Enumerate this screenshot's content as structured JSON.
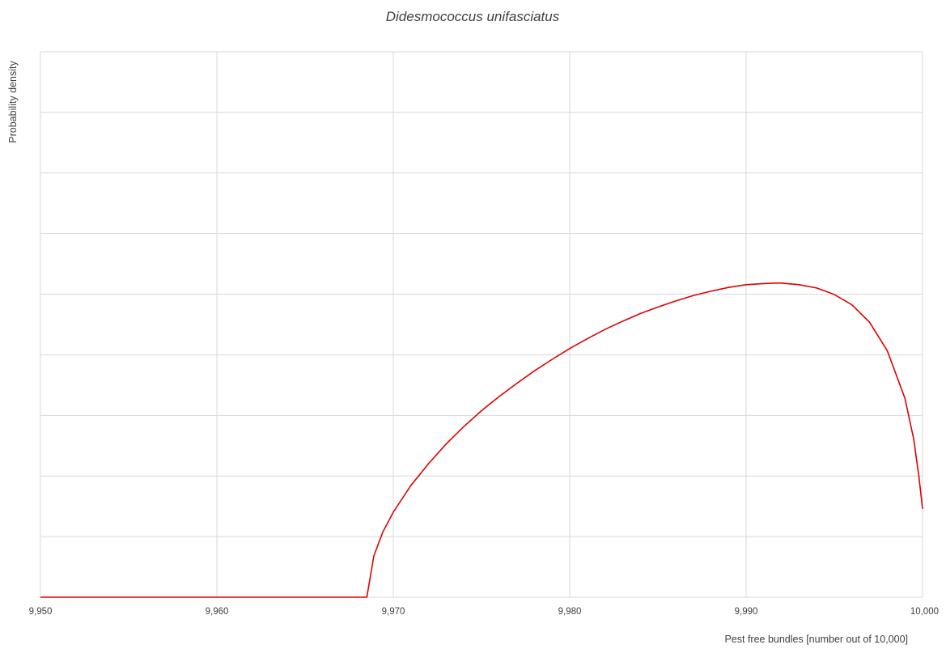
{
  "chart_data": {
    "type": "line",
    "title": "Didesmococcus unifasciatus",
    "xlabel": "Pest free bundles [number out of 10,000]",
    "ylabel": "Probability density",
    "xlim": [
      9950,
      10000
    ],
    "ylim": [
      0,
      1
    ],
    "x_ticks": [
      9950,
      9960,
      9970,
      9980,
      9990,
      10000
    ],
    "x_tick_labels": [
      "9,950",
      "9,960",
      "9,970",
      "9,980",
      "9,990",
      "10,000"
    ],
    "y_gridlines": 8,
    "grid": true,
    "legend": "none",
    "series": [
      {
        "color": "#e00000",
        "points": [
          [
            9950,
            0
          ],
          [
            9968.5,
            0
          ],
          [
            9968.9,
            0.076
          ],
          [
            9969.4,
            0.119
          ],
          [
            9970,
            0.156
          ],
          [
            9971,
            0.205
          ],
          [
            9972,
            0.245
          ],
          [
            9973,
            0.281
          ],
          [
            9974,
            0.313
          ],
          [
            9975,
            0.342
          ],
          [
            9976,
            0.368
          ],
          [
            9977,
            0.392
          ],
          [
            9978,
            0.415
          ],
          [
            9979,
            0.436
          ],
          [
            9980,
            0.456
          ],
          [
            9981,
            0.474
          ],
          [
            9982,
            0.491
          ],
          [
            9983,
            0.506
          ],
          [
            9984,
            0.52
          ],
          [
            9985,
            0.532
          ],
          [
            9986,
            0.543
          ],
          [
            9987,
            0.553
          ],
          [
            9988,
            0.561
          ],
          [
            9989,
            0.568
          ],
          [
            9990,
            0.573
          ],
          [
            9991,
            0.575
          ],
          [
            9991.6,
            0.576
          ],
          [
            9992,
            0.576
          ],
          [
            9993,
            0.573
          ],
          [
            9994,
            0.567
          ],
          [
            9995,
            0.555
          ],
          [
            9996,
            0.536
          ],
          [
            9997,
            0.504
          ],
          [
            9998,
            0.452
          ],
          [
            9999,
            0.365
          ],
          [
            9999.5,
            0.29
          ],
          [
            9999.8,
            0.22
          ],
          [
            10000,
            0.162
          ]
        ]
      }
    ]
  }
}
